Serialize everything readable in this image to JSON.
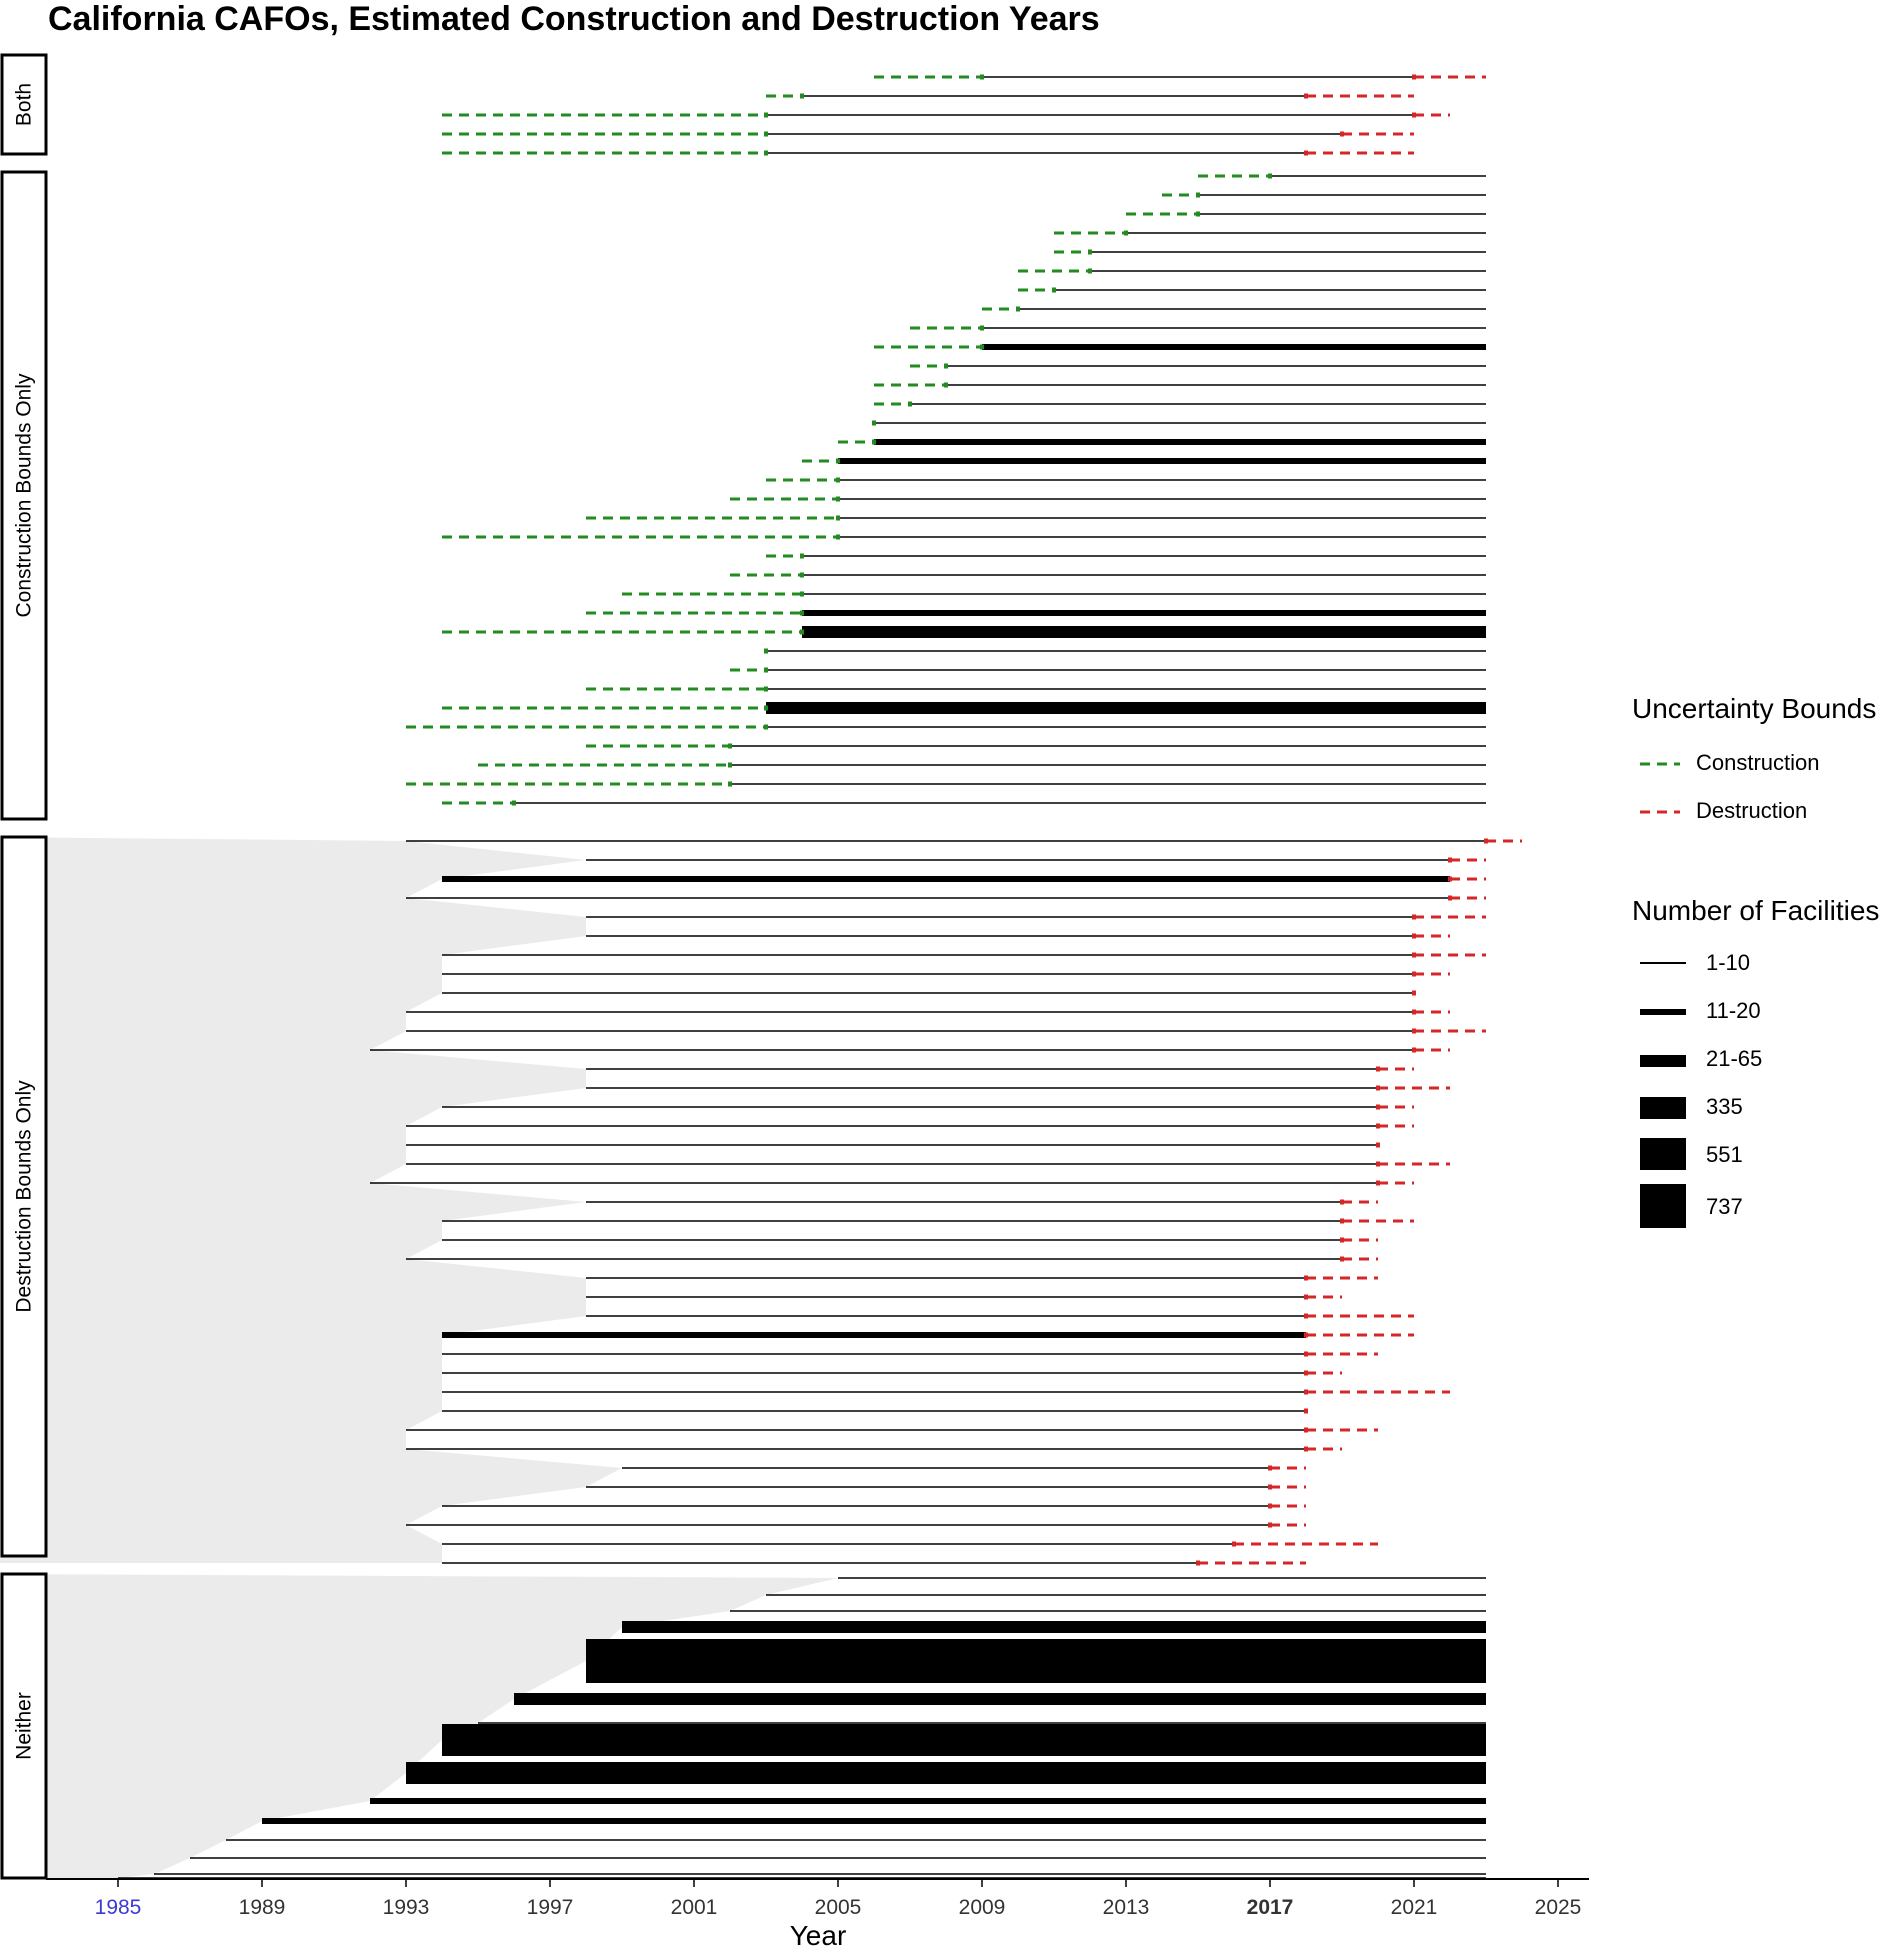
{
  "chart_data": {
    "type": "range-segments",
    "title": "California CAFOs, Estimated Construction and Destruction Years",
    "xlabel": "Year",
    "ylabel": "",
    "xlim": [
      1980,
      2026
    ],
    "x_ticks": [
      1985,
      1989,
      1993,
      1997,
      2001,
      2005,
      2009,
      2013,
      2017,
      2021,
      2025
    ],
    "x_tick_labels": [
      "1985",
      "1989",
      "1993",
      "1997",
      "2001",
      "2005",
      "2009",
      "2013",
      "2017",
      "2021",
      "2025"
    ],
    "highlighted_tick": "2017",
    "plot_end_year": 2023.0,
    "colors": {
      "construction": "#228B22",
      "destruction": "#D62728",
      "segment": "#000000",
      "area": "#EBEBEB",
      "strip_border": "#000000"
    },
    "panels": [
      {
        "label": "Both",
        "rows": [
          {
            "con_lo": 2006,
            "con_hi": 2009,
            "des_lo": 2021,
            "des_hi": 2023,
            "n": "1-10"
          },
          {
            "con_lo": 2003,
            "con_hi": 2004,
            "des_lo": 2018,
            "des_hi": 2021,
            "n": "1-10"
          },
          {
            "con_lo": 1994,
            "con_hi": 2003,
            "des_lo": 2021,
            "des_hi": 2022,
            "n": "1-10"
          },
          {
            "con_lo": 1994,
            "con_hi": 2003,
            "des_lo": 2019,
            "des_hi": 2021,
            "n": "1-10"
          },
          {
            "con_lo": 1994,
            "con_hi": 2003,
            "des_lo": 2018,
            "des_hi": 2021,
            "n": "1-10"
          }
        ]
      },
      {
        "label": "Construction Bounds Only",
        "rows": [
          {
            "con_lo": 2015,
            "con_hi": 2017,
            "n": "1-10"
          },
          {
            "con_lo": 2014,
            "con_hi": 2015,
            "n": "1-10"
          },
          {
            "con_lo": 2013,
            "con_hi": 2015,
            "n": "1-10"
          },
          {
            "con_lo": 2011,
            "con_hi": 2013,
            "n": "1-10"
          },
          {
            "con_lo": 2011,
            "con_hi": 2012,
            "n": "1-10"
          },
          {
            "con_lo": 2010,
            "con_hi": 2012,
            "n": "1-10"
          },
          {
            "con_lo": 2010,
            "con_hi": 2011,
            "n": "1-10"
          },
          {
            "con_lo": 2009,
            "con_hi": 2010,
            "n": "1-10"
          },
          {
            "con_lo": 2007,
            "con_hi": 2009,
            "n": "1-10"
          },
          {
            "con_lo": 2006,
            "con_hi": 2009,
            "n": "11-20"
          },
          {
            "con_lo": 2007,
            "con_hi": 2008,
            "n": "1-10"
          },
          {
            "con_lo": 2006,
            "con_hi": 2008,
            "n": "1-10"
          },
          {
            "con_lo": 2006,
            "con_hi": 2007,
            "n": "1-10"
          },
          {
            "con_lo": 2006,
            "con_hi": 2006,
            "n": "1-10"
          },
          {
            "con_lo": 2005,
            "con_hi": 2006,
            "n": "11-20"
          },
          {
            "con_lo": 2004,
            "con_hi": 2005,
            "n": "11-20"
          },
          {
            "con_lo": 2003,
            "con_hi": 2005,
            "n": "1-10"
          },
          {
            "con_lo": 2002,
            "con_hi": 2005,
            "n": "1-10"
          },
          {
            "con_lo": 1998,
            "con_hi": 2005,
            "n": "1-10"
          },
          {
            "con_lo": 1994,
            "con_hi": 2005,
            "n": "1-10"
          },
          {
            "con_lo": 2003,
            "con_hi": 2004,
            "n": "1-10"
          },
          {
            "con_lo": 2002,
            "con_hi": 2004,
            "n": "1-10"
          },
          {
            "con_lo": 1999,
            "con_hi": 2004,
            "n": "1-10"
          },
          {
            "con_lo": 1998,
            "con_hi": 2004,
            "n": "11-20"
          },
          {
            "con_lo": 1994,
            "con_hi": 2004,
            "n": "21-65"
          },
          {
            "con_lo": 2003,
            "con_hi": 2003,
            "n": "1-10"
          },
          {
            "con_lo": 2002,
            "con_hi": 2003,
            "n": "1-10"
          },
          {
            "con_lo": 1998,
            "con_hi": 2003,
            "n": "1-10"
          },
          {
            "con_lo": 1994,
            "con_hi": 2003,
            "n": "21-65"
          },
          {
            "con_lo": 1993,
            "con_hi": 2003,
            "n": "1-10"
          },
          {
            "con_lo": 1998,
            "con_hi": 2002,
            "n": "1-10"
          },
          {
            "con_lo": 1995,
            "con_hi": 2002,
            "n": "1-10"
          },
          {
            "con_lo": 1993,
            "con_hi": 2002,
            "n": "1-10"
          },
          {
            "con_lo": 1994,
            "con_hi": 1996,
            "n": "1-10"
          }
        ]
      },
      {
        "label": "Destruction Bounds Only",
        "rows": [
          {
            "start": 1993,
            "des_lo": 2023,
            "des_hi": 2024,
            "n": "1-10"
          },
          {
            "start": 1998,
            "des_lo": 2022,
            "des_hi": 2023,
            "n": "1-10"
          },
          {
            "start": 1994,
            "des_lo": 2022,
            "des_hi": 2023,
            "n": "11-20"
          },
          {
            "start": 1993,
            "des_lo": 2022,
            "des_hi": 2023,
            "n": "1-10"
          },
          {
            "start": 1998,
            "des_lo": 2021,
            "des_hi": 2023,
            "n": "1-10"
          },
          {
            "start": 1998,
            "des_lo": 2021,
            "des_hi": 2022,
            "n": "1-10"
          },
          {
            "start": 1994,
            "des_lo": 2021,
            "des_hi": 2023,
            "n": "1-10"
          },
          {
            "start": 1994,
            "des_lo": 2021,
            "des_hi": 2022,
            "n": "1-10"
          },
          {
            "start": 1994,
            "des_lo": 2021,
            "des_hi": 2021,
            "n": "1-10"
          },
          {
            "start": 1993,
            "des_lo": 2021,
            "des_hi": 2022,
            "n": "1-10"
          },
          {
            "start": 1993,
            "des_lo": 2021,
            "des_hi": 2023,
            "n": "1-10"
          },
          {
            "start": 1992,
            "des_lo": 2021,
            "des_hi": 2022,
            "n": "1-10"
          },
          {
            "start": 1998,
            "des_lo": 2020,
            "des_hi": 2021,
            "n": "1-10"
          },
          {
            "start": 1998,
            "des_lo": 2020,
            "des_hi": 2022,
            "n": "1-10"
          },
          {
            "start": 1994,
            "des_lo": 2020,
            "des_hi": 2021,
            "n": "1-10"
          },
          {
            "start": 1993,
            "des_lo": 2020,
            "des_hi": 2021,
            "n": "1-10"
          },
          {
            "start": 1993,
            "des_lo": 2020,
            "des_hi": 2020,
            "n": "1-10"
          },
          {
            "start": 1993,
            "des_lo": 2020,
            "des_hi": 2022,
            "n": "1-10"
          },
          {
            "start": 1992,
            "des_lo": 2020,
            "des_hi": 2021,
            "n": "1-10"
          },
          {
            "start": 1998,
            "des_lo": 2019,
            "des_hi": 2020,
            "n": "1-10"
          },
          {
            "start": 1994,
            "des_lo": 2019,
            "des_hi": 2021,
            "n": "1-10"
          },
          {
            "start": 1994,
            "des_lo": 2019,
            "des_hi": 2020,
            "n": "1-10"
          },
          {
            "start": 1993,
            "des_lo": 2019,
            "des_hi": 2020,
            "n": "1-10"
          },
          {
            "start": 1998,
            "des_lo": 2018,
            "des_hi": 2020,
            "n": "1-10"
          },
          {
            "start": 1998,
            "des_lo": 2018,
            "des_hi": 2019,
            "n": "1-10"
          },
          {
            "start": 1998,
            "des_lo": 2018,
            "des_hi": 2021,
            "n": "1-10"
          },
          {
            "start": 1994,
            "des_lo": 2018,
            "des_hi": 2021,
            "n": "11-20"
          },
          {
            "start": 1994,
            "des_lo": 2018,
            "des_hi": 2020,
            "n": "1-10"
          },
          {
            "start": 1994,
            "des_lo": 2018,
            "des_hi": 2019,
            "n": "1-10"
          },
          {
            "start": 1994,
            "des_lo": 2018,
            "des_hi": 2022,
            "n": "1-10"
          },
          {
            "start": 1994,
            "des_lo": 2018,
            "des_hi": 2018,
            "n": "1-10"
          },
          {
            "start": 1993,
            "des_lo": 2018,
            "des_hi": 2020,
            "n": "1-10"
          },
          {
            "start": 1993,
            "des_lo": 2018,
            "des_hi": 2019,
            "n": "1-10"
          },
          {
            "start": 1999,
            "des_lo": 2017,
            "des_hi": 2018,
            "n": "1-10"
          },
          {
            "start": 1998,
            "des_lo": 2017,
            "des_hi": 2018,
            "n": "1-10"
          },
          {
            "start": 1994,
            "des_lo": 2017,
            "des_hi": 2018,
            "n": "1-10"
          },
          {
            "start": 1993,
            "des_lo": 2017,
            "des_hi": 2018,
            "n": "1-10"
          },
          {
            "start": 1994,
            "des_lo": 2016,
            "des_hi": 2020,
            "n": "1-10"
          },
          {
            "start": 1994,
            "des_lo": 2015,
            "des_hi": 2018,
            "n": "1-10"
          }
        ]
      },
      {
        "label": "Neither",
        "rows": [
          {
            "start": 2005,
            "n": "1-10"
          },
          {
            "start": 2003,
            "n": "1-10"
          },
          {
            "start": 2002,
            "n": "1-10"
          },
          {
            "start": 1999,
            "n": "21-65"
          },
          {
            "start": 1998,
            "n": "737"
          },
          {
            "start": 1996,
            "n": "21-65"
          },
          {
            "start": 1995,
            "n": "1-10"
          },
          {
            "start": 1994,
            "n": "551"
          },
          {
            "start": 1993,
            "n": "335"
          },
          {
            "start": 1992,
            "n": "11-20"
          },
          {
            "start": 1989,
            "n": "11-20"
          },
          {
            "start": 1988,
            "n": "1-10"
          },
          {
            "start": 1987,
            "n": "1-10"
          },
          {
            "start": 1986,
            "n": "1-10"
          },
          {
            "start": 1985,
            "n": "1-10"
          }
        ]
      }
    ],
    "legend": {
      "uncertainty_title": "Uncertainty Bounds",
      "uncertainty_items": [
        "Construction",
        "Destruction"
      ],
      "facilities_title": "Number of Facilities",
      "facility_items": [
        "1-10",
        "11-20",
        "21-65",
        "335",
        "551",
        "737"
      ]
    }
  }
}
